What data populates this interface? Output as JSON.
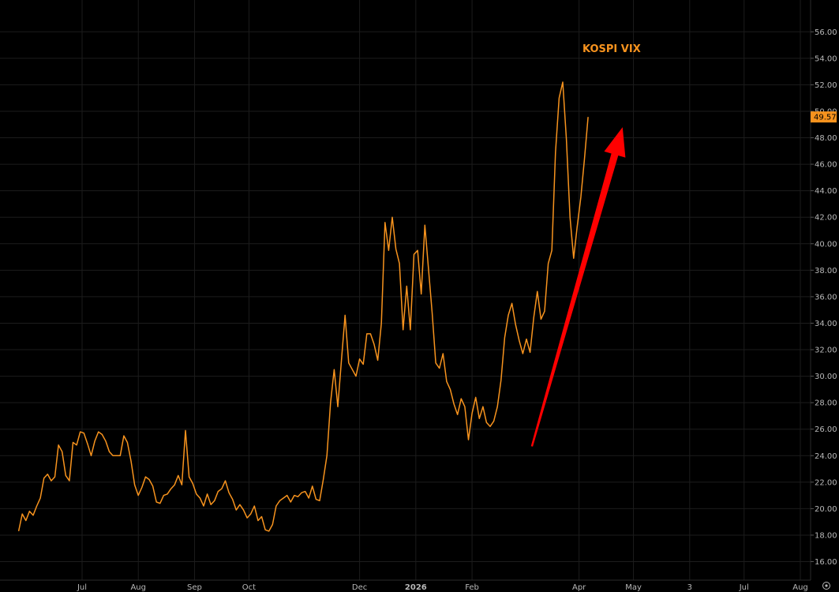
{
  "chart_data": {
    "type": "line",
    "title": "KOSPI VIX",
    "xlabel": "",
    "ylabel": "",
    "ylim": [
      14.6,
      58.4
    ],
    "grid": true,
    "last_value_label": "49.57",
    "y_ticks": [
      "16.00",
      "18.00",
      "20.00",
      "22.00",
      "24.00",
      "26.00",
      "28.00",
      "30.00",
      "32.00",
      "34.00",
      "36.00",
      "38.00",
      "40.00",
      "42.00",
      "44.00",
      "46.00",
      "48.00",
      "50.00",
      "52.00",
      "54.00",
      "56.00"
    ],
    "x_ticks": [
      {
        "label": "Jul",
        "date": "2025-07-01"
      },
      {
        "label": "Aug",
        "date": "2025-08-01"
      },
      {
        "label": "Sep",
        "date": "2025-09-01"
      },
      {
        "label": "Oct",
        "date": "2025-10-01"
      },
      {
        "label": "Dec",
        "date": "2025-12-01"
      },
      {
        "label": "2026",
        "date": "2026-01-01"
      },
      {
        "label": "Feb",
        "date": "2026-02-01"
      },
      {
        "label": "Apr",
        "date": "2026-04-01"
      },
      {
        "label": "May",
        "date": "2026-05-01"
      },
      {
        "label": "3",
        "date": "2026-06-01"
      },
      {
        "label": "Jul",
        "date": "2026-07-01"
      },
      {
        "label": "Aug",
        "date": "2026-08-01"
      }
    ],
    "series": [
      {
        "color": "#f7931e",
        "points": [
          [
            "2025-05-27",
            18.3
          ],
          [
            "2025-05-29",
            19.6
          ],
          [
            "2025-05-31",
            19.1
          ],
          [
            "2025-06-02",
            19.8
          ],
          [
            "2025-06-04",
            19.5
          ],
          [
            "2025-06-06",
            20.2
          ],
          [
            "2025-06-08",
            20.8
          ],
          [
            "2025-06-10",
            22.3
          ],
          [
            "2025-06-12",
            22.6
          ],
          [
            "2025-06-14",
            22.1
          ],
          [
            "2025-06-16",
            22.4
          ],
          [
            "2025-06-18",
            24.8
          ],
          [
            "2025-06-20",
            24.3
          ],
          [
            "2025-06-22",
            22.5
          ],
          [
            "2025-06-24",
            22.1
          ],
          [
            "2025-06-26",
            25.0
          ],
          [
            "2025-06-28",
            24.8
          ],
          [
            "2025-06-30",
            25.8
          ],
          [
            "2025-07-02",
            25.7
          ],
          [
            "2025-07-04",
            24.9
          ],
          [
            "2025-07-06",
            24.0
          ],
          [
            "2025-07-08",
            25.1
          ],
          [
            "2025-07-10",
            25.8
          ],
          [
            "2025-07-12",
            25.6
          ],
          [
            "2025-07-14",
            25.1
          ],
          [
            "2025-07-16",
            24.3
          ],
          [
            "2025-07-18",
            24.0
          ],
          [
            "2025-07-20",
            24.0
          ],
          [
            "2025-07-22",
            24.0
          ],
          [
            "2025-07-24",
            25.5
          ],
          [
            "2025-07-26",
            25.0
          ],
          [
            "2025-07-28",
            23.6
          ],
          [
            "2025-07-30",
            21.8
          ],
          [
            "2025-08-01",
            21.0
          ],
          [
            "2025-08-03",
            21.6
          ],
          [
            "2025-08-05",
            22.4
          ],
          [
            "2025-08-07",
            22.2
          ],
          [
            "2025-08-09",
            21.7
          ],
          [
            "2025-08-11",
            20.5
          ],
          [
            "2025-08-13",
            20.4
          ],
          [
            "2025-08-15",
            21.0
          ],
          [
            "2025-08-17",
            21.1
          ],
          [
            "2025-08-19",
            21.5
          ],
          [
            "2025-08-21",
            21.8
          ],
          [
            "2025-08-23",
            22.5
          ],
          [
            "2025-08-25",
            21.8
          ],
          [
            "2025-08-27",
            25.9
          ],
          [
            "2025-08-29",
            22.4
          ],
          [
            "2025-08-31",
            21.9
          ],
          [
            "2025-09-02",
            21.1
          ],
          [
            "2025-09-04",
            20.8
          ],
          [
            "2025-09-06",
            20.2
          ],
          [
            "2025-09-08",
            21.1
          ],
          [
            "2025-09-10",
            20.3
          ],
          [
            "2025-09-12",
            20.6
          ],
          [
            "2025-09-14",
            21.3
          ],
          [
            "2025-09-16",
            21.5
          ],
          [
            "2025-09-18",
            22.1
          ],
          [
            "2025-09-20",
            21.2
          ],
          [
            "2025-09-22",
            20.7
          ],
          [
            "2025-09-24",
            19.9
          ],
          [
            "2025-09-26",
            20.3
          ],
          [
            "2025-09-28",
            19.9
          ],
          [
            "2025-09-30",
            19.3
          ],
          [
            "2025-10-02",
            19.6
          ],
          [
            "2025-10-04",
            20.2
          ],
          [
            "2025-10-06",
            19.1
          ],
          [
            "2025-10-08",
            19.4
          ],
          [
            "2025-10-10",
            18.4
          ],
          [
            "2025-10-12",
            18.3
          ],
          [
            "2025-10-14",
            18.8
          ],
          [
            "2025-10-16",
            20.2
          ],
          [
            "2025-10-18",
            20.6
          ],
          [
            "2025-10-20",
            20.8
          ],
          [
            "2025-10-22",
            21.0
          ],
          [
            "2025-10-24",
            20.5
          ],
          [
            "2025-10-26",
            21.0
          ],
          [
            "2025-10-28",
            20.9
          ],
          [
            "2025-10-30",
            21.2
          ],
          [
            "2025-11-01",
            21.3
          ],
          [
            "2025-11-03",
            20.8
          ],
          [
            "2025-11-05",
            21.7
          ],
          [
            "2025-11-07",
            20.7
          ],
          [
            "2025-11-09",
            20.6
          ],
          [
            "2025-11-11",
            22.2
          ],
          [
            "2025-11-13",
            24.0
          ],
          [
            "2025-11-15",
            28.0
          ],
          [
            "2025-11-17",
            30.5
          ],
          [
            "2025-11-19",
            27.7
          ],
          [
            "2025-11-21",
            31.2
          ],
          [
            "2025-11-23",
            34.6
          ],
          [
            "2025-11-25",
            31.0
          ],
          [
            "2025-11-27",
            30.5
          ],
          [
            "2025-11-29",
            30.0
          ],
          [
            "2025-12-01",
            31.3
          ],
          [
            "2025-12-03",
            30.9
          ],
          [
            "2025-12-05",
            33.2
          ],
          [
            "2025-12-07",
            33.2
          ],
          [
            "2025-12-09",
            32.4
          ],
          [
            "2025-12-11",
            31.2
          ],
          [
            "2025-12-13",
            34.0
          ],
          [
            "2025-12-15",
            41.6
          ],
          [
            "2025-12-17",
            39.5
          ],
          [
            "2025-12-19",
            42.0
          ],
          [
            "2025-12-21",
            39.6
          ],
          [
            "2025-12-23",
            38.5
          ],
          [
            "2025-12-25",
            33.5
          ],
          [
            "2025-12-27",
            36.8
          ],
          [
            "2025-12-29",
            33.5
          ],
          [
            "2025-12-31",
            39.2
          ],
          [
            "2026-01-02",
            39.5
          ],
          [
            "2026-01-04",
            36.2
          ],
          [
            "2026-01-06",
            41.4
          ],
          [
            "2026-01-08",
            38.1
          ],
          [
            "2026-01-10",
            34.8
          ],
          [
            "2026-01-12",
            31.0
          ],
          [
            "2026-01-14",
            30.6
          ],
          [
            "2026-01-16",
            31.7
          ],
          [
            "2026-01-18",
            29.6
          ],
          [
            "2026-01-20",
            29.0
          ],
          [
            "2026-01-22",
            27.9
          ],
          [
            "2026-01-24",
            27.1
          ],
          [
            "2026-01-26",
            28.3
          ],
          [
            "2026-01-28",
            27.7
          ],
          [
            "2026-01-30",
            25.2
          ],
          [
            "2026-02-01",
            27.2
          ],
          [
            "2026-02-03",
            28.4
          ],
          [
            "2026-02-05",
            26.8
          ],
          [
            "2026-02-07",
            27.7
          ],
          [
            "2026-02-09",
            26.5
          ],
          [
            "2026-02-11",
            26.2
          ],
          [
            "2026-02-13",
            26.6
          ],
          [
            "2026-02-15",
            27.7
          ],
          [
            "2026-02-17",
            29.7
          ],
          [
            "2026-02-19",
            32.9
          ],
          [
            "2026-02-21",
            34.6
          ],
          [
            "2026-02-23",
            35.5
          ],
          [
            "2026-02-25",
            33.9
          ],
          [
            "2026-02-27",
            32.7
          ],
          [
            "2026-03-01",
            31.7
          ],
          [
            "2026-03-03",
            32.8
          ],
          [
            "2026-03-05",
            31.8
          ],
          [
            "2026-03-07",
            34.4
          ],
          [
            "2026-03-09",
            36.4
          ],
          [
            "2026-03-11",
            34.3
          ],
          [
            "2026-03-13",
            34.9
          ],
          [
            "2026-03-15",
            38.5
          ],
          [
            "2026-03-17",
            39.5
          ],
          [
            "2026-03-19",
            46.9
          ],
          [
            "2026-03-21",
            51.0
          ],
          [
            "2026-03-23",
            52.2
          ],
          [
            "2026-03-25",
            47.9
          ],
          [
            "2026-03-27",
            42.0
          ],
          [
            "2026-03-29",
            38.9
          ],
          [
            "2026-03-31",
            41.3
          ],
          [
            "2026-04-02",
            43.5
          ],
          [
            "2026-04-04",
            46.4
          ],
          [
            "2026-04-06",
            49.57
          ]
        ]
      }
    ],
    "annotations": [
      {
        "type": "arrow",
        "color": "#ff0000",
        "from": [
          "2026-03-06",
          24.7
        ],
        "to": [
          "2026-04-25",
          48.8
        ]
      }
    ]
  }
}
